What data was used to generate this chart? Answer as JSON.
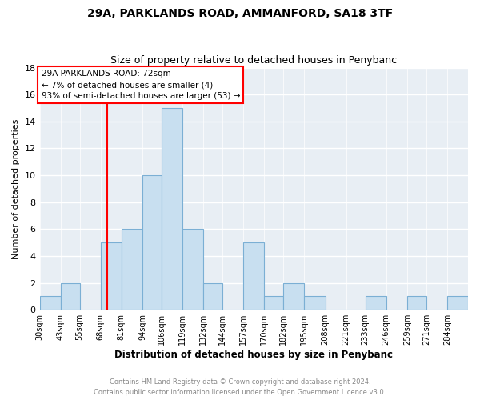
{
  "title": "29A, PARKLANDS ROAD, AMMANFORD, SA18 3TF",
  "subtitle": "Size of property relative to detached houses in Penybanc",
  "xlabel": "Distribution of detached houses by size in Penybanc",
  "ylabel": "Number of detached properties",
  "footer_line1": "Contains HM Land Registry data © Crown copyright and database right 2024.",
  "footer_line2": "Contains public sector information licensed under the Open Government Licence v3.0.",
  "bin_labels": [
    "30sqm",
    "43sqm",
    "55sqm",
    "68sqm",
    "81sqm",
    "94sqm",
    "106sqm",
    "119sqm",
    "132sqm",
    "144sqm",
    "157sqm",
    "170sqm",
    "182sqm",
    "195sqm",
    "208sqm",
    "221sqm",
    "233sqm",
    "246sqm",
    "259sqm",
    "271sqm",
    "284sqm"
  ],
  "bin_edges": [
    30,
    43,
    55,
    68,
    81,
    94,
    106,
    119,
    132,
    144,
    157,
    170,
    182,
    195,
    208,
    221,
    233,
    246,
    259,
    271,
    284,
    297
  ],
  "counts": [
    1,
    2,
    0,
    5,
    6,
    10,
    15,
    6,
    2,
    0,
    5,
    1,
    2,
    1,
    0,
    0,
    1,
    0,
    1,
    0,
    1
  ],
  "bar_color": "#c8dff0",
  "bar_edge_color": "#7bafd4",
  "vline_x": 72,
  "vline_color": "red",
  "annotation_title": "29A PARKLANDS ROAD: 72sqm",
  "annotation_line2": "← 7% of detached houses are smaller (4)",
  "annotation_line3": "93% of semi-detached houses are larger (53) →",
  "annotation_box_color": "white",
  "annotation_box_edge": "red",
  "ylim": [
    0,
    18
  ],
  "yticks": [
    0,
    2,
    4,
    6,
    8,
    10,
    12,
    14,
    16,
    18
  ],
  "figure_bg": "white",
  "axes_bg": "#e8eef4",
  "grid_color": "white",
  "footer_color": "#888888"
}
